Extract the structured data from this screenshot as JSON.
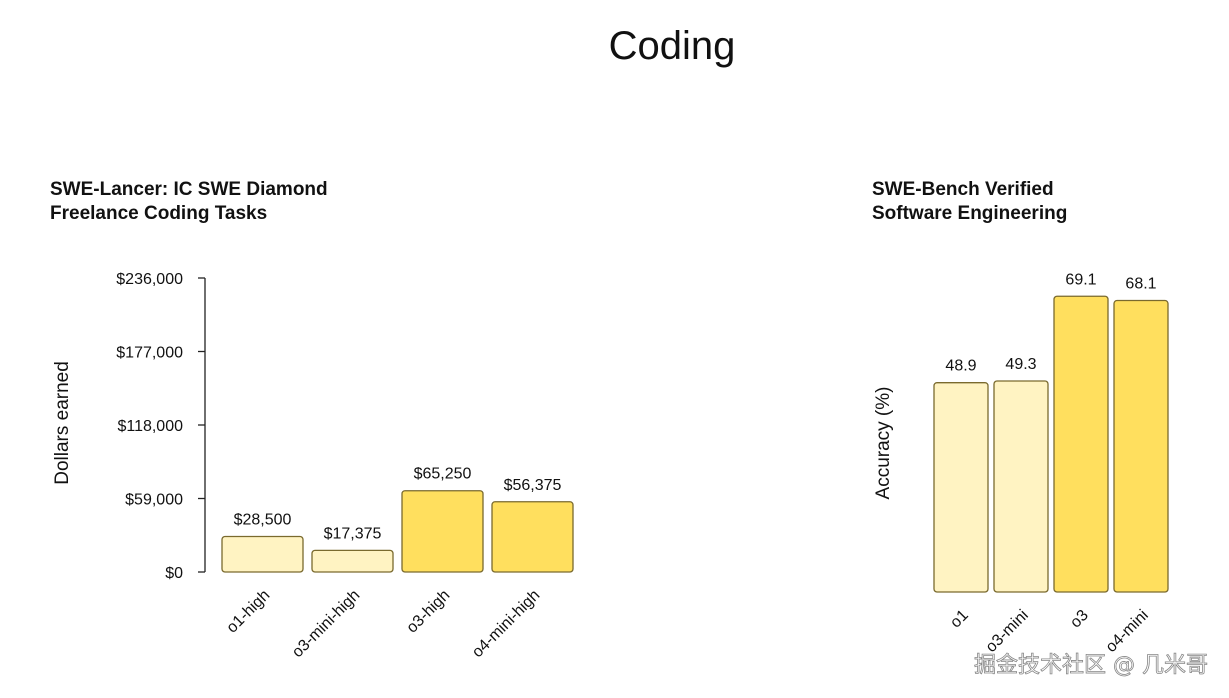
{
  "page_title": "Coding",
  "watermark": "掘金技术社区 @ 几米哥",
  "colors": {
    "light_bar": "#FFF3C2",
    "dark_bar": "#FFDF5E",
    "bar_stroke": "#7A6A2E"
  },
  "chart_data": [
    {
      "type": "bar",
      "title": [
        "SWE-Lancer: IC SWE Diamond",
        "Freelance Coding Tasks"
      ],
      "ylabel": "Dollars earned",
      "xlabel": "",
      "categories": [
        "o1-high",
        "o3-mini-high",
        "o3-high",
        "o4-mini-high"
      ],
      "values": [
        28500,
        17375,
        65250,
        56375
      ],
      "data_labels": [
        "$28,500",
        "$17,375",
        "$65,250",
        "$56,375"
      ],
      "bar_shades": [
        "light",
        "light",
        "dark",
        "dark"
      ],
      "ylim": [
        0,
        236000
      ],
      "yticks": [
        0,
        59000,
        118000,
        177000,
        236000
      ],
      "ytick_labels": [
        "$0",
        "$59,000",
        "$118,000",
        "$177,000",
        "$236,000"
      ],
      "grid": false
    },
    {
      "type": "bar",
      "title": [
        "SWE-Bench Verified",
        "Software Engineering"
      ],
      "ylabel": "Accuracy (%)",
      "xlabel": "",
      "categories": [
        "o1",
        "o3-mini",
        "o3",
        "o4-mini"
      ],
      "values": [
        48.9,
        49.3,
        69.1,
        68.1
      ],
      "data_labels": [
        "48.9",
        "49.3",
        "69.1",
        "68.1"
      ],
      "bar_shades": [
        "light",
        "light",
        "dark",
        "dark"
      ],
      "grid": false
    }
  ]
}
